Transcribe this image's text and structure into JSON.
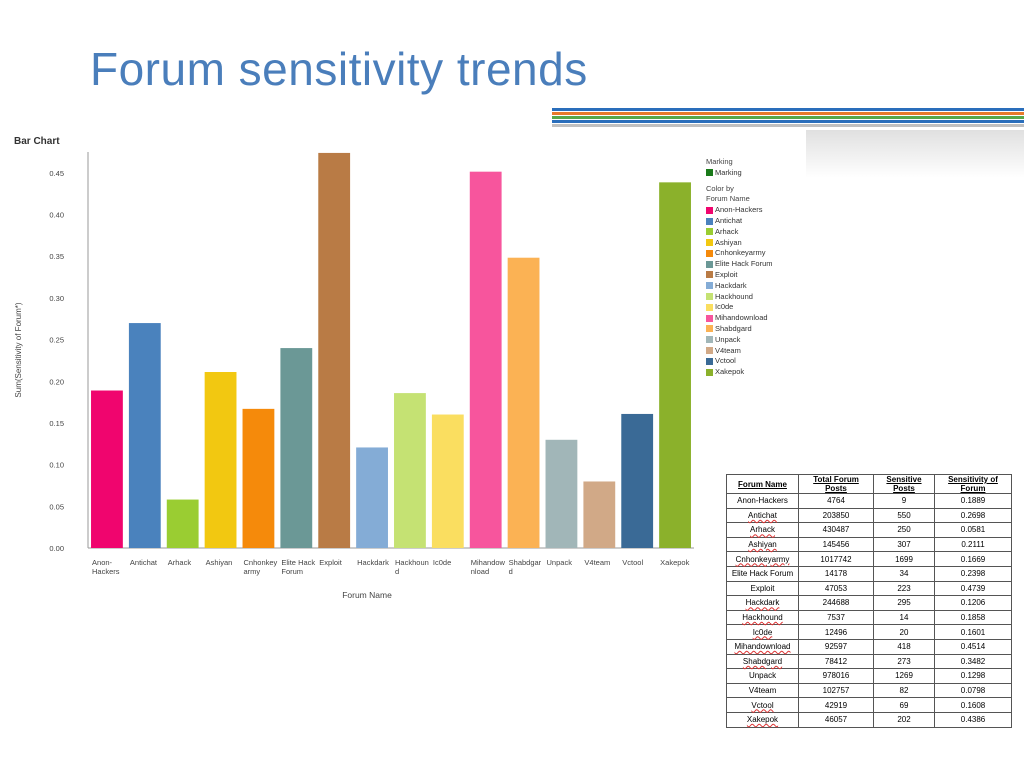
{
  "slide": {
    "title": "Forum sensitivity trends",
    "stripe_colors": [
      "#2a6ebb",
      "#e87a2a",
      "#58a84a",
      "#2a6ebb",
      "#c0c0c0"
    ]
  },
  "chart_data": {
    "type": "bar",
    "title": "Bar Chart",
    "xlabel": "Forum Name",
    "ylabel": "Sum(Sensitivity of Forum*)",
    "ylim": [
      0,
      0.475
    ],
    "yticks": [
      "0.00",
      "0.05",
      "0.10",
      "0.15",
      "0.20",
      "0.25",
      "0.30",
      "0.35",
      "0.40",
      "0.45"
    ],
    "categories": [
      "Anon-Hackers",
      "Antichat",
      "Arhack",
      "Ashiyan",
      "Cnhonkeyarmy",
      "Elite Hack Forum",
      "Exploit",
      "Hackdark",
      "Hackhound",
      "Ic0de",
      "Mihandownload",
      "Shabdgard",
      "Unpack",
      "V4team",
      "Vctool",
      "Xakepok"
    ],
    "category_labels": [
      [
        "Anon-",
        "Hackers"
      ],
      [
        "Antichat"
      ],
      [
        "Arhack"
      ],
      [
        "Ashiyan"
      ],
      [
        "Cnhonkey",
        "army"
      ],
      [
        "Elite Hack",
        "Forum"
      ],
      [
        "Exploit"
      ],
      [
        "Hackdark"
      ],
      [
        "Hackhoun",
        "d"
      ],
      [
        "Ic0de"
      ],
      [
        "Mihandow",
        "nload"
      ],
      [
        "Shabdgar",
        "d"
      ],
      [
        "Unpack"
      ],
      [
        "V4team"
      ],
      [
        "Vctool"
      ],
      [
        "Xakepok"
      ]
    ],
    "values": [
      0.1889,
      0.2698,
      0.0581,
      0.2111,
      0.1669,
      0.2398,
      0.4739,
      0.1206,
      0.1858,
      0.1601,
      0.4514,
      0.3482,
      0.1298,
      0.0798,
      0.1608,
      0.4386
    ],
    "colors": [
      "#f0056e",
      "#4a82bd",
      "#9acd32",
      "#f2c811",
      "#f58a0b",
      "#6b9896",
      "#b97b45",
      "#84acd6",
      "#c5e273",
      "#fade60",
      "#f7559d",
      "#fbb254",
      "#a1b6b8",
      "#d1a987",
      "#3a6a96",
      "#8bb12b"
    ],
    "grid": false,
    "legend": {
      "position": "right",
      "marking_title": "Marking",
      "marking_label": "Marking",
      "marking_color": "#1a7a1a",
      "color_title_lines": [
        "Color by",
        "Forum Name"
      ]
    }
  },
  "table": {
    "headers": [
      "Forum Name",
      "Total Forum Posts",
      "Sensitive Posts",
      "Sensitivity of Forum"
    ],
    "rows": [
      [
        "Anon-Hackers",
        "4764",
        "9",
        "0.1889"
      ],
      [
        "Antichat",
        "203850",
        "550",
        "0.2698"
      ],
      [
        "Arhack",
        "430487",
        "250",
        "0.0581"
      ],
      [
        "Ashiyan",
        "145456",
        "307",
        "0.2111"
      ],
      [
        "Cnhonkeyarmy",
        "1017742",
        "1699",
        "0.1669"
      ],
      [
        "Elite Hack Forum",
        "14178",
        "34",
        "0.2398"
      ],
      [
        "Exploit",
        "47053",
        "223",
        "0.4739"
      ],
      [
        "Hackdark",
        "244688",
        "295",
        "0.1206"
      ],
      [
        "Hackhound",
        "7537",
        "14",
        "0.1858"
      ],
      [
        "Ic0de",
        "12496",
        "20",
        "0.1601"
      ],
      [
        "Mihandownload",
        "92597",
        "418",
        "0.4514"
      ],
      [
        "Shabdgard",
        "78412",
        "273",
        "0.3482"
      ],
      [
        "Unpack",
        "978016",
        "1269",
        "0.1298"
      ],
      [
        "V4team",
        "102757",
        "82",
        "0.0798"
      ],
      [
        "Vctool",
        "42919",
        "69",
        "0.1608"
      ],
      [
        "Xakepok",
        "46057",
        "202",
        "0.4386"
      ]
    ],
    "underlined_names": [
      "Antichat",
      "Arhack",
      "Ashiyan",
      "Cnhonkeyarmy",
      "Hackdark",
      "Hackhound",
      "Ic0de",
      "Mihandownload",
      "Shabdgard",
      "Vctool",
      "Xakepok"
    ]
  }
}
